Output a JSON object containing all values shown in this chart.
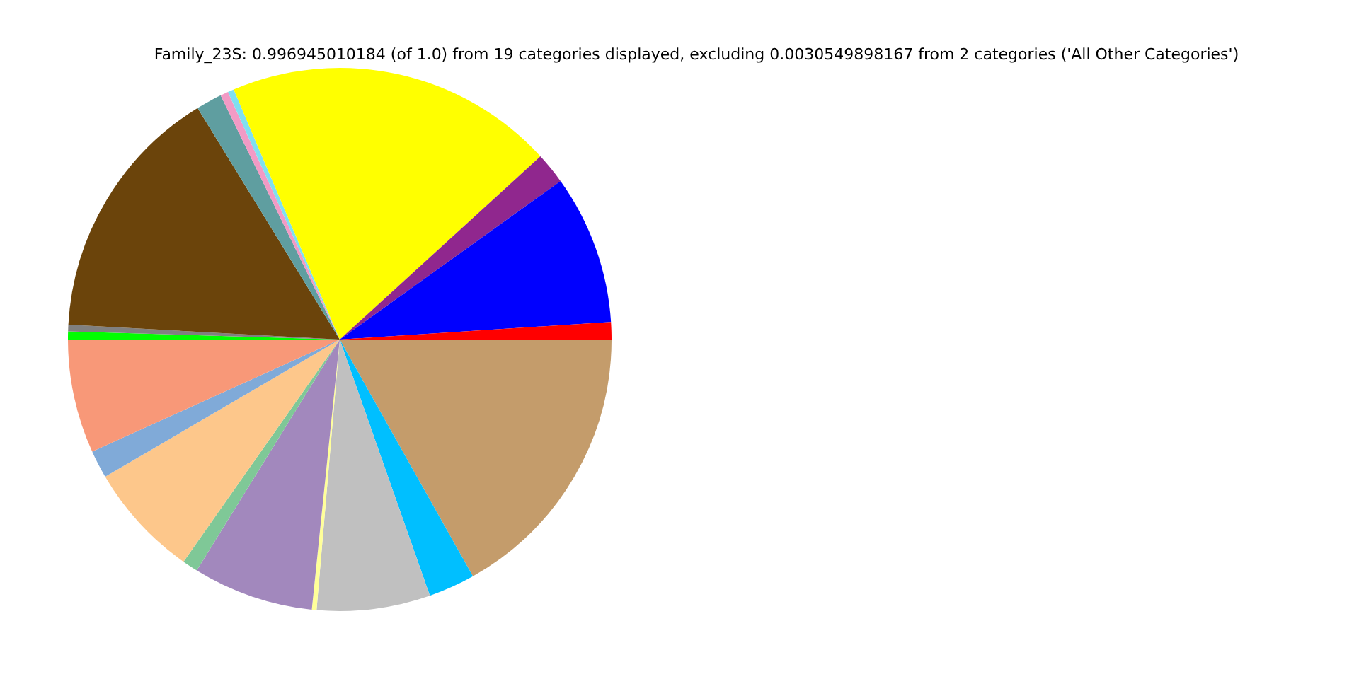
{
  "chart_data": {
    "type": "pie",
    "title": "Family_23S: 0.996945010184 (of 1.0) from 19 categories displayed, excluding 0.0030549898167 from 2 categories ('All Other Categories')",
    "categories": [
      null,
      null,
      null,
      null,
      null,
      null,
      null,
      null,
      null,
      null,
      null,
      null,
      null,
      null,
      null,
      null,
      null,
      null,
      null
    ],
    "values": [
      16.85,
      2.77,
      6.74,
      0.28,
      7.18,
      0.93,
      6.82,
      1.66,
      6.75,
      0.5,
      0.39,
      15.37,
      1.54,
      0.47,
      0.37,
      19.6,
      1.87,
      8.88,
      1.03
    ],
    "colors": [
      "#c49c6b",
      "#00bfff",
      "#c0c0c0",
      "#ffff99",
      "#a288bd",
      "#7fc897",
      "#fdc78b",
      "#80aad8",
      "#f89878",
      "#00ff00",
      "#808080",
      "#6b440b",
      "#5f9ea0",
      "#f29ac5",
      "#80e0f0",
      "#ffff00",
      "#90278e",
      "#0000ff",
      "#ff0000"
    ],
    "legend": false
  }
}
